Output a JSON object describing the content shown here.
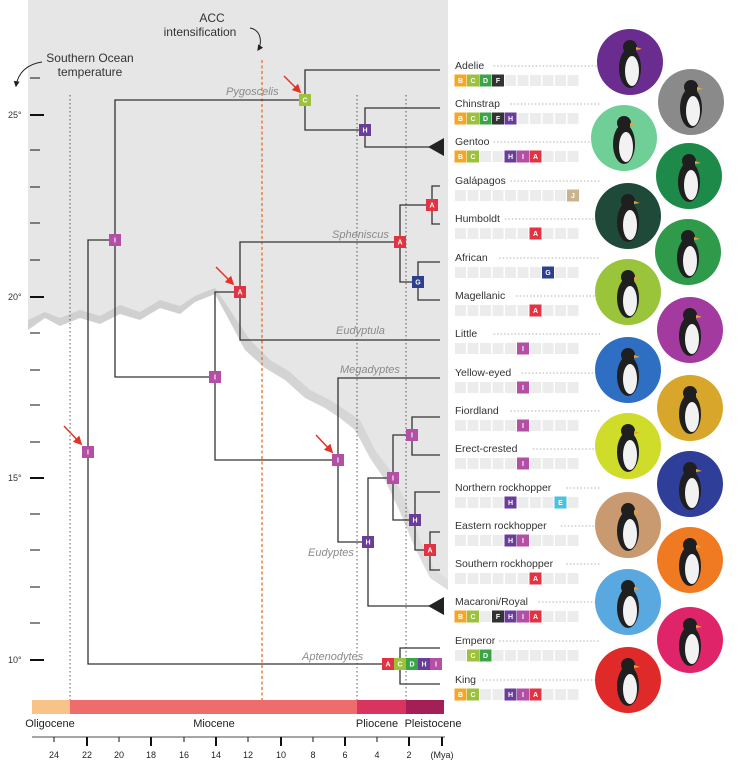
{
  "titles": {
    "acc": [
      "ACC",
      "intensification"
    ],
    "ocean": [
      "Southern Ocean",
      "temperature"
    ]
  },
  "y_axis": {
    "labels": [
      "25°",
      "20°",
      "15°",
      "10°"
    ]
  },
  "genera": [
    "Pygoscelis",
    "Spheniscus",
    "Eudyptula",
    "Megadyptes",
    "Eudyptes",
    "Aptenodytes"
  ],
  "species": [
    {
      "name": "Adelie",
      "codes": [
        "B",
        "C",
        "D",
        "F"
      ]
    },
    {
      "name": "Chinstrap",
      "codes": [
        "B",
        "C",
        "D",
        "F",
        "H"
      ]
    },
    {
      "name": "Gentoo",
      "codes": [
        "B",
        "C",
        "H",
        "I",
        "A"
      ]
    },
    {
      "name": "Galápagos",
      "codes": [
        "J"
      ]
    },
    {
      "name": "Humboldt",
      "codes": [
        "A"
      ]
    },
    {
      "name": "African",
      "codes": [
        "G"
      ]
    },
    {
      "name": "Magellanic",
      "codes": [
        "A"
      ]
    },
    {
      "name": "Little",
      "codes": [
        "I"
      ]
    },
    {
      "name": "Yellow-eyed",
      "codes": [
        "I"
      ]
    },
    {
      "name": "Fiordland",
      "codes": [
        "I"
      ]
    },
    {
      "name": "Erect-crested",
      "codes": [
        "I"
      ]
    },
    {
      "name": "Northern rockhopper",
      "codes": [
        "H",
        "E"
      ]
    },
    {
      "name": "Eastern rockhopper",
      "codes": [
        "H",
        "I"
      ]
    },
    {
      "name": "Southern rockhopper",
      "codes": [
        "A"
      ]
    },
    {
      "name": "Macaroni/Royal",
      "codes": [
        "B",
        "C",
        "F",
        "H",
        "I",
        "A"
      ]
    },
    {
      "name": "Emperor",
      "codes": [
        "C",
        "D"
      ]
    },
    {
      "name": "King",
      "codes": [
        "B",
        "C",
        "H",
        "I",
        "A"
      ]
    }
  ],
  "node_tags": [
    "C",
    "H",
    "A",
    "A",
    "G",
    "I",
    "A",
    "I",
    "I",
    "I",
    "I",
    "H",
    "I",
    "H",
    "A",
    "A",
    "C",
    "D",
    "H",
    "I"
  ],
  "epochs": [
    "Oligocene",
    "Miocene",
    "Pliocene",
    "Pleistocene"
  ],
  "x_axis": {
    "ticks": [
      "24",
      "22",
      "20",
      "18",
      "16",
      "14",
      "12",
      "10",
      "8",
      "6",
      "4",
      "2",
      "(Mya)"
    ]
  },
  "colors": {
    "A": "#e23343",
    "B": "#f5a623",
    "C": "#9cc13b",
    "D": "#3aa547",
    "E": "#45c3e0",
    "F": "#333333",
    "G": "#2e3f8f",
    "H": "#6a3d99",
    "I": "#b34fa4",
    "J": "#c9b48f",
    "oligocene": "#f8c388",
    "miocene": "#ee6c6c",
    "pliocene": "#d8345f",
    "pleistocene": "#a31f56",
    "accent": "#e8702a",
    "arrow": "#e0342a"
  },
  "icons": [
    "penguin-photo-icon",
    "red-arrow-icon",
    "acc-curved-arrow-icon",
    "ocean-curved-arrow-icon"
  ]
}
